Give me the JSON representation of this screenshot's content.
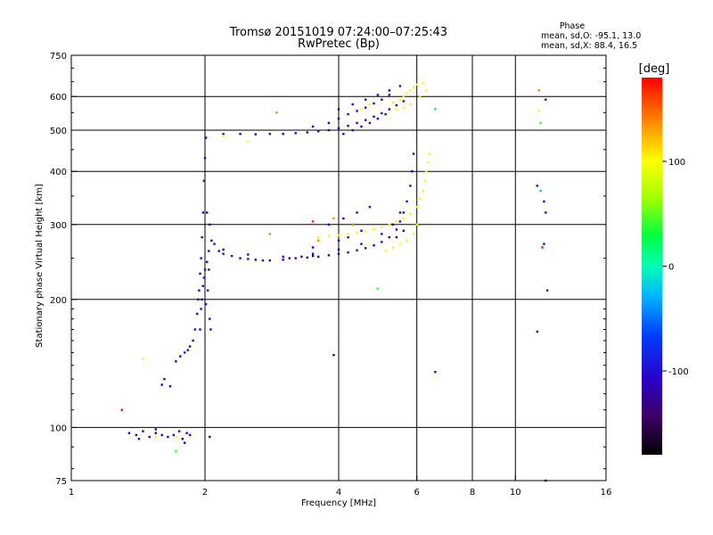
{
  "chart_data": {
    "type": "scatter",
    "title": "Tromsø 20151019 07:24:00–07:25:43",
    "subtitle": "RwPretec (Bp)",
    "xlabel": "Frequency [MHz]",
    "ylabel": "Stationary phase Virtual Height [km]",
    "x_scale": "log",
    "y_scale": "log",
    "xlim": [
      1,
      16
    ],
    "ylim": [
      75,
      750
    ],
    "x_ticks": [
      1,
      2,
      4,
      6,
      8,
      10,
      16
    ],
    "x_tick_labels": [
      "1",
      "2",
      "4",
      "6",
      "8",
      "10",
      "16"
    ],
    "y_ticks": [
      75,
      100,
      200,
      300,
      400,
      500,
      600,
      750
    ],
    "y_tick_labels": [
      "75",
      "100",
      "200",
      "300",
      "400",
      "500",
      "600",
      "750"
    ],
    "grid": true,
    "stats": {
      "heading": "Phase",
      "line_o": "mean, sd,O: -95.1, 13.0",
      "line_x": "mean, sd,X: 88.4, 16.5"
    },
    "colorbar": {
      "label": "[deg]",
      "min": -180,
      "max": 180,
      "ticks": [
        100,
        0,
        -100
      ],
      "tick_labels": [
        "100",
        "0",
        "-100"
      ]
    },
    "series": [
      {
        "name": "",
        "phase_deg": -110,
        "points": [
          [
            1.35,
            97
          ],
          [
            1.4,
            96
          ],
          [
            1.45,
            98
          ],
          [
            1.5,
            95
          ],
          [
            1.55,
            97
          ],
          [
            1.6,
            96
          ],
          [
            1.65,
            95
          ],
          [
            1.7,
            96
          ],
          [
            1.55,
            99
          ],
          [
            1.42,
            94
          ],
          [
            1.75,
            98
          ],
          [
            1.78,
            94
          ],
          [
            1.8,
            92
          ],
          [
            1.82,
            97
          ],
          [
            1.85,
            96
          ],
          [
            1.6,
            126
          ],
          [
            1.62,
            130
          ],
          [
            1.67,
            125
          ],
          [
            1.72,
            143
          ],
          [
            1.76,
            147
          ],
          [
            1.8,
            150
          ],
          [
            1.83,
            152
          ],
          [
            1.85,
            155
          ],
          [
            1.88,
            160
          ],
          [
            1.9,
            170
          ],
          [
            1.92,
            185
          ],
          [
            1.93,
            200
          ],
          [
            1.94,
            210
          ],
          [
            1.95,
            230
          ],
          [
            1.96,
            250
          ],
          [
            1.97,
            280
          ],
          [
            1.98,
            320
          ],
          [
            1.99,
            380
          ],
          [
            2.0,
            430
          ],
          [
            2.01,
            480
          ],
          [
            1.97,
            200
          ],
          [
            1.98,
            215
          ],
          [
            1.99,
            225
          ],
          [
            2.0,
            235
          ],
          [
            2.02,
            245
          ],
          [
            2.04,
            260
          ],
          [
            2.05,
            180
          ],
          [
            2.06,
            170
          ],
          [
            2.03,
            210
          ],
          [
            2.01,
            195
          ],
          [
            2.07,
            275
          ],
          [
            2.05,
            300
          ],
          [
            1.95,
            170
          ],
          [
            1.96,
            190
          ],
          [
            2.04,
            235
          ],
          [
            2.02,
            320
          ],
          [
            2.1,
            270
          ],
          [
            2.15,
            260
          ],
          [
            2.2,
            256
          ],
          [
            2.3,
            253
          ],
          [
            2.4,
            250
          ],
          [
            2.5,
            249
          ],
          [
            2.6,
            248
          ],
          [
            2.7,
            247
          ],
          [
            2.8,
            247
          ],
          [
            3.0,
            248
          ],
          [
            3.2,
            250
          ],
          [
            3.4,
            251
          ],
          [
            3.6,
            252
          ],
          [
            3.8,
            254
          ],
          [
            4.0,
            256
          ],
          [
            4.2,
            258
          ],
          [
            4.4,
            261
          ],
          [
            4.6,
            264
          ],
          [
            4.8,
            268
          ],
          [
            5.0,
            273
          ],
          [
            5.2,
            280
          ],
          [
            5.4,
            292
          ],
          [
            5.5,
            305
          ],
          [
            5.6,
            320
          ],
          [
            5.7,
            340
          ],
          [
            5.8,
            370
          ],
          [
            5.85,
            400
          ],
          [
            5.9,
            440
          ],
          [
            2.2,
            262
          ],
          [
            2.5,
            255
          ],
          [
            3.0,
            252
          ],
          [
            3.5,
            256
          ],
          [
            4.0,
            262
          ],
          [
            4.5,
            270
          ],
          [
            5.0,
            285
          ],
          [
            5.3,
            300
          ],
          [
            5.5,
            320
          ],
          [
            3.5,
            265
          ],
          [
            4.0,
            275
          ],
          [
            4.2,
            280
          ],
          [
            4.5,
            290
          ],
          [
            3.8,
            300
          ],
          [
            4.1,
            310
          ],
          [
            4.4,
            320
          ],
          [
            4.7,
            330
          ],
          [
            2.2,
            490
          ],
          [
            2.4,
            490
          ],
          [
            2.6,
            489
          ],
          [
            2.8,
            490
          ],
          [
            3.0,
            490
          ],
          [
            3.2,
            492
          ],
          [
            3.4,
            494
          ],
          [
            3.6,
            497
          ],
          [
            3.8,
            500
          ],
          [
            4.0,
            505
          ],
          [
            4.2,
            512
          ],
          [
            4.4,
            520
          ],
          [
            4.6,
            528
          ],
          [
            4.8,
            538
          ],
          [
            5.0,
            548
          ],
          [
            5.2,
            560
          ],
          [
            5.4,
            572
          ],
          [
            5.6,
            585
          ],
          [
            3.5,
            510
          ],
          [
            3.8,
            520
          ],
          [
            4.0,
            532
          ],
          [
            4.2,
            545
          ],
          [
            4.4,
            555
          ],
          [
            4.6,
            565
          ],
          [
            4.8,
            578
          ],
          [
            5.0,
            590
          ],
          [
            5.2,
            605
          ],
          [
            4.0,
            560
          ],
          [
            4.3,
            575
          ],
          [
            4.6,
            590
          ],
          [
            4.9,
            605
          ],
          [
            5.2,
            620
          ],
          [
            5.5,
            635
          ],
          [
            4.1,
            490
          ],
          [
            4.3,
            500
          ],
          [
            4.5,
            510
          ],
          [
            4.7,
            520
          ],
          [
            4.9,
            532
          ],
          [
            5.1,
            545
          ],
          [
            3.9,
            148
          ],
          [
            6.6,
            135
          ],
          [
            11.2,
            370
          ],
          [
            11.6,
            340
          ],
          [
            11.7,
            320
          ],
          [
            11.6,
            270
          ],
          [
            11.8,
            210
          ],
          [
            11.2,
            168
          ],
          [
            11.7,
            590
          ]
        ]
      },
      {
        "name": "",
        "phase_deg": -150,
        "points": [
          [
            3.1,
            250
          ],
          [
            3.3,
            252
          ],
          [
            3.5,
            253
          ],
          [
            5.4,
            280
          ],
          [
            5.6,
            290
          ],
          [
            2.05,
            95
          ],
          [
            11.7,
            75
          ]
        ]
      },
      {
        "name": "",
        "phase_deg": 95,
        "points": [
          [
            3.6,
            280
          ],
          [
            3.8,
            282
          ],
          [
            4.0,
            283
          ],
          [
            4.2,
            285
          ],
          [
            4.4,
            287
          ],
          [
            4.6,
            289
          ],
          [
            4.8,
            292
          ],
          [
            5.0,
            296
          ],
          [
            5.2,
            300
          ],
          [
            5.4,
            305
          ],
          [
            5.6,
            310
          ],
          [
            5.8,
            318
          ],
          [
            6.0,
            330
          ],
          [
            6.1,
            345
          ],
          [
            6.2,
            360
          ],
          [
            6.25,
            380
          ],
          [
            6.3,
            400
          ],
          [
            6.35,
            420
          ],
          [
            6.4,
            440
          ],
          [
            5.1,
            260
          ],
          [
            5.3,
            265
          ],
          [
            5.5,
            270
          ],
          [
            5.7,
            275
          ],
          [
            5.9,
            285
          ],
          [
            6.0,
            300
          ],
          [
            5.3,
            580
          ],
          [
            5.5,
            590
          ],
          [
            5.6,
            600
          ],
          [
            5.7,
            610
          ],
          [
            5.8,
            620
          ],
          [
            5.9,
            630
          ],
          [
            6.0,
            640
          ],
          [
            6.2,
            645
          ],
          [
            5.4,
            560
          ],
          [
            5.6,
            565
          ],
          [
            5.8,
            575
          ],
          [
            6.1,
            600
          ],
          [
            6.3,
            620
          ],
          [
            4.5,
            560
          ],
          [
            4.7,
            575
          ],
          [
            2.2,
            485
          ],
          [
            2.5,
            470
          ],
          [
            1.45,
            145
          ],
          [
            1.55,
            95
          ],
          [
            11.3,
            555
          ],
          [
            1.72,
            95
          ]
        ]
      },
      {
        "name": "",
        "phase_deg": 140,
        "points": [
          [
            3.6,
            275
          ],
          [
            3.9,
            310
          ],
          [
            2.8,
            285
          ],
          [
            4.3,
            300
          ],
          [
            2.9,
            550
          ],
          [
            11.3,
            620
          ]
        ]
      },
      {
        "name": "",
        "phase_deg": 175,
        "points": [
          [
            1.3,
            110
          ],
          [
            11.5,
            265
          ],
          [
            3.5,
            305
          ]
        ]
      },
      {
        "name": "",
        "phase_deg": 40,
        "points": [
          [
            4.9,
            212
          ],
          [
            1.72,
            88
          ],
          [
            11.4,
            520
          ]
        ]
      },
      {
        "name": "",
        "phase_deg": -20,
        "points": [
          [
            6.6,
            560
          ],
          [
            11.4,
            360
          ]
        ]
      }
    ]
  }
}
